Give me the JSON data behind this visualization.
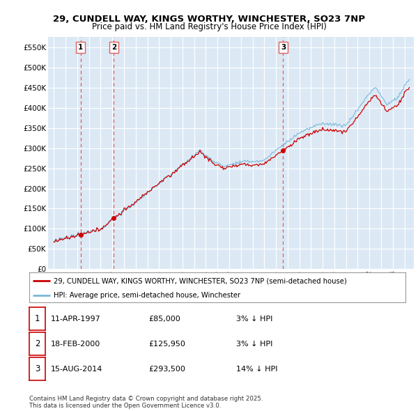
{
  "title": "29, CUNDELL WAY, KINGS WORTHY, WINCHESTER, SO23 7NP",
  "subtitle": "Price paid vs. HM Land Registry's House Price Index (HPI)",
  "legend_property": "29, CUNDELL WAY, KINGS WORTHY, WINCHESTER, SO23 7NP (semi-detached house)",
  "legend_hpi": "HPI: Average price, semi-detached house, Winchester",
  "transactions": [
    {
      "num": 1,
      "date": "11-APR-1997",
      "date_dec": 1997.28,
      "price": 85000,
      "pct": "3%",
      "dir": "↓"
    },
    {
      "num": 2,
      "date": "18-FEB-2000",
      "date_dec": 2000.13,
      "price": 125950,
      "pct": "3%",
      "dir": "↓"
    },
    {
      "num": 3,
      "date": "15-AUG-2014",
      "date_dec": 2014.62,
      "price": 293500,
      "pct": "14%",
      "dir": "↓"
    }
  ],
  "yticks": [
    0,
    50000,
    100000,
    150000,
    200000,
    250000,
    300000,
    350000,
    400000,
    450000,
    500000,
    550000
  ],
  "ylim": [
    0,
    575000
  ],
  "xlim_start": 1994.5,
  "xlim_end": 2025.8,
  "bg_color": "#dce9f5",
  "grid_color": "#ffffff",
  "red_color": "#cc0000",
  "blue_color": "#7ab8d9",
  "dashed_color": "#e06060",
  "footer": "Contains HM Land Registry data © Crown copyright and database right 2025.\nThis data is licensed under the Open Government Licence v3.0."
}
